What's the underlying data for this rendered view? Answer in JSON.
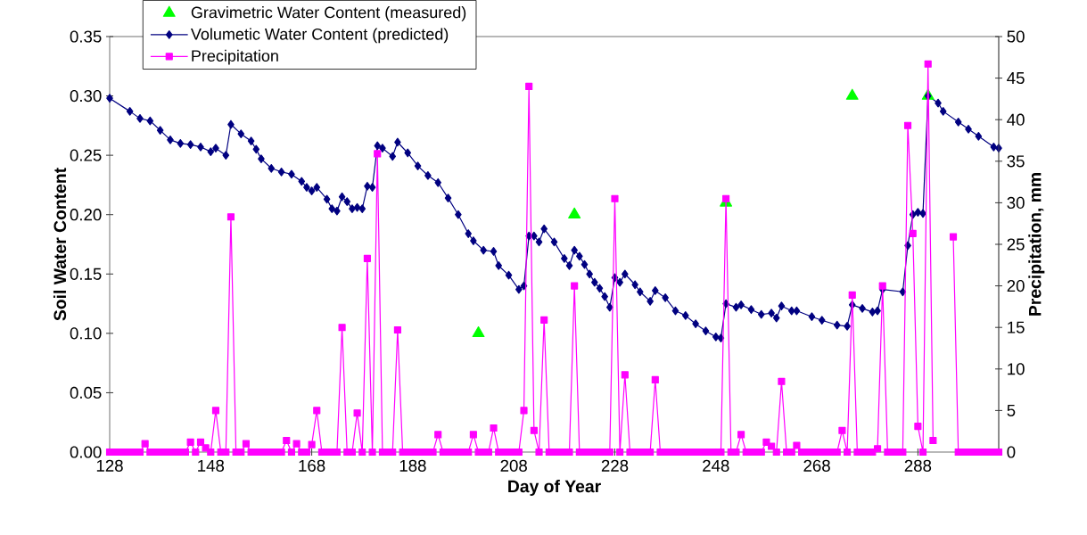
{
  "chart_data": {
    "type": "line",
    "xlabel": "Day of Year",
    "ylabel": "Soil Water Content",
    "y2label": "Precipitation, mm",
    "xlim": [
      128,
      304
    ],
    "xticks": [
      128,
      148,
      168,
      188,
      208,
      228,
      248,
      268,
      288
    ],
    "ylim": [
      0,
      0.35
    ],
    "yticks": [
      {
        "value": 0,
        "label": "0.00"
      },
      {
        "value": 0.05,
        "label": "0.05"
      },
      {
        "value": 0.1,
        "label": "0.10"
      },
      {
        "value": 0.15,
        "label": "0.15"
      },
      {
        "value": 0.2,
        "label": "0.20"
      },
      {
        "value": 0.25,
        "label": "0.25"
      },
      {
        "value": 0.3,
        "label": "0.30"
      },
      {
        "value": 0.35,
        "label": "0.35"
      }
    ],
    "y2lim": [
      0,
      50
    ],
    "y2ticks": [
      0,
      5,
      10,
      15,
      20,
      25,
      30,
      35,
      40,
      45,
      50
    ],
    "legend": "top left",
    "series": [
      {
        "name": "Gravimetric Water Content (measured)",
        "type": "scatter",
        "marker": "triangle",
        "color": "#00ff00",
        "x": [
          201,
          220,
          250,
          275,
          290
        ],
        "values": [
          0.1,
          0.2,
          0.21,
          0.3,
          0.3
        ]
      },
      {
        "name": "Volumetic Water Content (predicted)",
        "marker": "diamond",
        "color": "#000080",
        "x": [
          128,
          132,
          134,
          136,
          138,
          140,
          142,
          144,
          146,
          148,
          149,
          151,
          152,
          154,
          156,
          157,
          158,
          160,
          162,
          164,
          166,
          167,
          168,
          169,
          171,
          172,
          173,
          174,
          175,
          176,
          177,
          178,
          179,
          180,
          181,
          182,
          184,
          185,
          187,
          189,
          191,
          193,
          195,
          197,
          199,
          200,
          202,
          204,
          205,
          207,
          209,
          210,
          211,
          212,
          213,
          214,
          216,
          218,
          219,
          220,
          221,
          222,
          223,
          224,
          225,
          226,
          227,
          228,
          229,
          230,
          232,
          233,
          235,
          236,
          238,
          240,
          242,
          244,
          246,
          248,
          249,
          250,
          252,
          253,
          255,
          257,
          259,
          260,
          261,
          263,
          264,
          267,
          269,
          272,
          274,
          275,
          277,
          279,
          280,
          281,
          285,
          286,
          287,
          288,
          289,
          290,
          292,
          293,
          296,
          298,
          300,
          303,
          304
        ],
        "values": [
          0.298,
          0.287,
          0.281,
          0.279,
          0.271,
          0.263,
          0.26,
          0.259,
          0.257,
          0.253,
          0.256,
          0.25,
          0.276,
          0.268,
          0.262,
          0.255,
          0.247,
          0.239,
          0.236,
          0.234,
          0.228,
          0.223,
          0.22,
          0.223,
          0.213,
          0.205,
          0.203,
          0.215,
          0.211,
          0.205,
          0.206,
          0.205,
          0.224,
          0.223,
          0.258,
          0.256,
          0.249,
          0.261,
          0.252,
          0.241,
          0.233,
          0.227,
          0.214,
          0.2,
          0.184,
          0.178,
          0.17,
          0.169,
          0.157,
          0.149,
          0.137,
          0.14,
          0.182,
          0.182,
          0.177,
          0.188,
          0.177,
          0.163,
          0.157,
          0.17,
          0.165,
          0.158,
          0.15,
          0.143,
          0.138,
          0.131,
          0.122,
          0.147,
          0.143,
          0.15,
          0.141,
          0.135,
          0.127,
          0.136,
          0.13,
          0.119,
          0.115,
          0.108,
          0.102,
          0.097,
          0.096,
          0.125,
          0.122,
          0.124,
          0.12,
          0.116,
          0.117,
          0.113,
          0.123,
          0.119,
          0.119,
          0.114,
          0.111,
          0.107,
          0.106,
          0.124,
          0.121,
          0.118,
          0.119,
          0.137,
          0.135,
          0.174,
          0.2,
          0.202,
          0.201,
          0.3,
          0.294,
          0.287,
          0.278,
          0.272,
          0.266,
          0.257,
          0.256
        ]
      },
      {
        "name": "Precipitation",
        "marker": "square",
        "color": "#ff00ff",
        "axis": "y2",
        "x": [
          128,
          129,
          130,
          131,
          132,
          133,
          134,
          135,
          136,
          137,
          138,
          139,
          140,
          141,
          142,
          143,
          144,
          145,
          146,
          147,
          148,
          149,
          150,
          151,
          152,
          153,
          154,
          155,
          156,
          157,
          158,
          159,
          160,
          161,
          162,
          163,
          164,
          165,
          166,
          167,
          168,
          169,
          170,
          171,
          172,
          173,
          174,
          175,
          176,
          177,
          178,
          179,
          180,
          181,
          182,
          183,
          184,
          185,
          186,
          187,
          188,
          189,
          190,
          191,
          192,
          193,
          194,
          195,
          196,
          197,
          198,
          199,
          200,
          201,
          202,
          203,
          204,
          205,
          206,
          207,
          208,
          209,
          210,
          211,
          212,
          213,
          214,
          215,
          216,
          217,
          218,
          219,
          220,
          221,
          222,
          223,
          224,
          225,
          226,
          227,
          228,
          229,
          230,
          231,
          232,
          233,
          234,
          235,
          236,
          237,
          238,
          239,
          240,
          241,
          242,
          243,
          244,
          245,
          246,
          247,
          248,
          249,
          250,
          251,
          252,
          253,
          254,
          255,
          256,
          257,
          258,
          259,
          260,
          261,
          262,
          263,
          264,
          265,
          266,
          267,
          268,
          269,
          270,
          271,
          272,
          273,
          274,
          275,
          276,
          277,
          278,
          279,
          280,
          281,
          282,
          283,
          284,
          285,
          286,
          287,
          288,
          289,
          290,
          291,
          292,
          293,
          294,
          295,
          296,
          297,
          298,
          299,
          300,
          301,
          302,
          303,
          304
        ],
        "values": [
          0,
          0,
          0,
          0,
          0,
          0,
          0,
          1,
          0,
          0,
          0,
          0,
          0,
          0,
          0,
          0,
          1.2,
          0,
          1.2,
          0.5,
          0,
          5,
          0,
          0,
          28.3,
          0,
          0,
          1,
          0,
          0,
          0,
          0,
          0,
          0,
          0,
          1.4,
          0,
          1,
          0,
          0,
          0.9,
          5,
          0,
          0,
          0,
          0,
          15,
          0,
          0,
          4.7,
          0,
          23.3,
          0,
          35.9,
          0,
          0,
          0,
          14.7,
          0,
          0,
          0,
          0,
          0,
          0,
          0,
          2.1,
          0,
          0,
          0,
          0,
          0,
          0,
          2.1,
          0,
          0,
          0,
          2.9,
          0,
          0,
          0,
          0,
          0,
          5,
          44,
          2.6,
          0,
          15.9,
          0,
          0,
          0,
          0,
          0,
          20,
          0,
          0,
          0,
          0,
          0,
          0,
          0,
          30.5,
          0,
          9.3,
          0,
          0,
          0,
          0,
          0,
          8.7,
          0,
          0,
          0,
          0,
          0,
          0,
          0,
          0,
          0,
          0,
          0,
          0,
          0,
          30.5,
          0,
          0,
          2.1,
          0,
          0,
          0,
          0,
          1.2,
          0.7,
          0,
          8.5,
          0,
          0,
          0.8,
          0,
          0,
          0,
          0,
          0,
          0,
          0,
          0,
          2.6,
          0,
          18.9,
          0,
          0,
          0,
          0,
          0.4,
          20,
          0,
          0,
          0,
          0,
          39.3,
          26.3,
          3.1,
          0,
          46.7,
          1.4,
          null,
          null,
          null,
          25.9,
          0,
          0,
          0,
          0,
          0,
          0,
          0,
          0,
          0
        ]
      }
    ]
  }
}
